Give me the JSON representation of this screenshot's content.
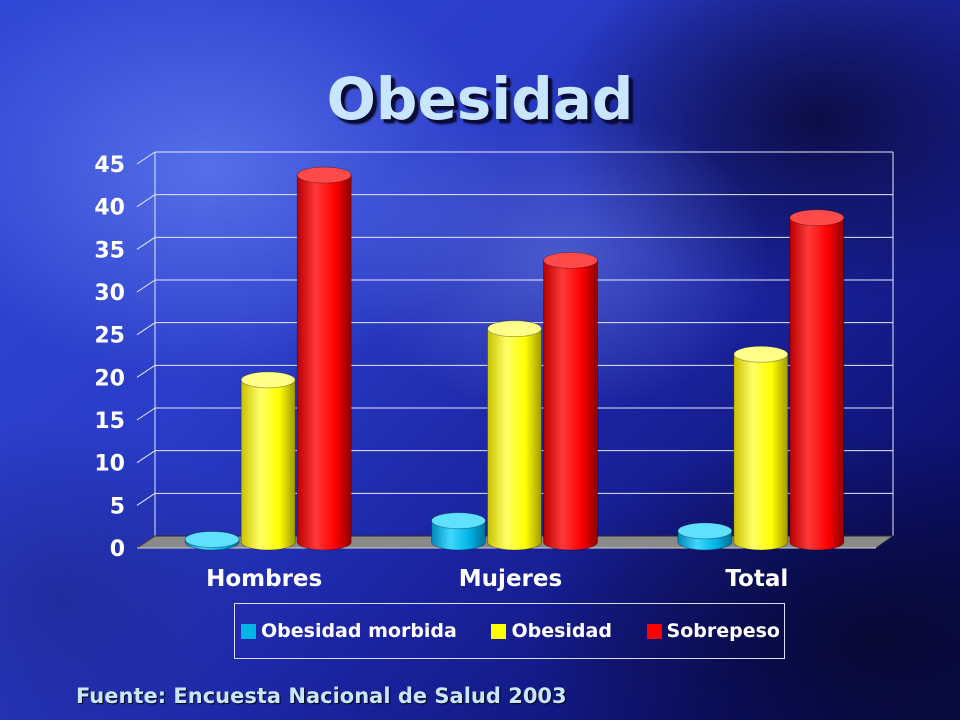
{
  "slide": {
    "title": "Obesidad",
    "source": "Fuente: Encuesta Nacional de Salud 2003"
  },
  "chart_data": {
    "type": "bar",
    "style": "3d-cylinder",
    "categories": [
      "Hombres",
      "Mujeres",
      "Total"
    ],
    "series": [
      {
        "name": "Obesidad morbida",
        "color": "#00b4e6",
        "values": [
          0.3,
          2.5,
          1.3
        ]
      },
      {
        "name": "Obesidad",
        "color": "#ffff00",
        "values": [
          19,
          25,
          22
        ]
      },
      {
        "name": "Sobrepeso",
        "color": "#ff0000",
        "values": [
          43,
          33,
          38
        ]
      }
    ],
    "ylim": [
      0,
      45
    ],
    "yticks": [
      0,
      5,
      10,
      15,
      20,
      25,
      30,
      35,
      40,
      45
    ],
    "grid": true,
    "legend_position": "bottom",
    "xlabel": "",
    "ylabel": ""
  }
}
